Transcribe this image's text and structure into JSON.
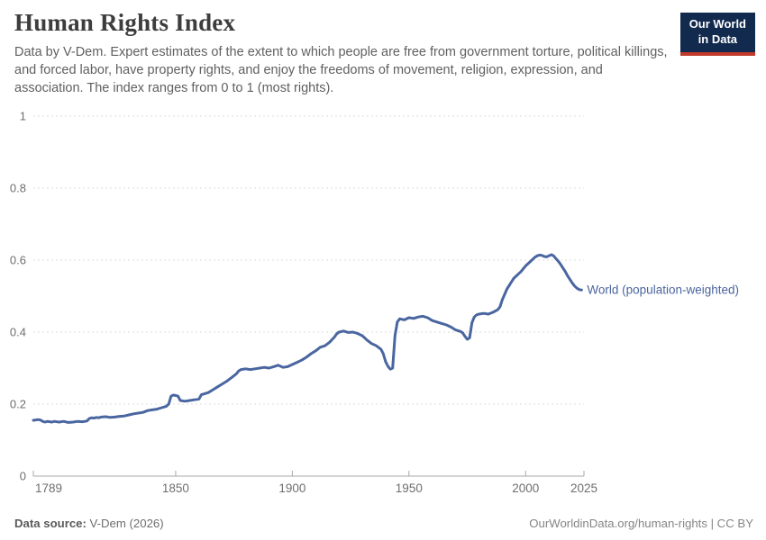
{
  "header": {
    "title": "Human Rights Index",
    "subtitle": "Data by V-Dem. Expert estimates of the extent to which people are free from government torture, political killings, and forced labor, have property rights, and enjoy the freedoms of movement, religion, expression, and association. The index ranges from 0 to 1 (most rights).",
    "logo": {
      "line1": "Our World",
      "line2": "in Data",
      "bg_color": "#122a4e",
      "bar_color": "#c0392b"
    }
  },
  "footer": {
    "source_label": "Data source:",
    "source_value": " V-Dem (2026)",
    "credit": "OurWorldinData.org/human-rights | CC BY"
  },
  "chart_data": {
    "type": "line",
    "title": "Human Rights Index",
    "series_label": "World (population-weighted)",
    "line_color": "#4a66a0",
    "axis_text_color": "#6e6e6e",
    "gridline_color": "#dcdcdc",
    "axis_line_color": "#a8a8a8",
    "xlim": [
      1789,
      2025
    ],
    "ylim": [
      0,
      1
    ],
    "x_ticks": [
      1789,
      1850,
      1900,
      1950,
      2000,
      2025
    ],
    "y_ticks": [
      0,
      0.2,
      0.4,
      0.6,
      0.8,
      1
    ],
    "y_tick_labels": [
      "0",
      "0.2",
      "0.4",
      "0.6",
      "0.8",
      "1"
    ],
    "grid": "dashed-horizontal",
    "legend_position": "end-of-line",
    "points": [
      [
        1789,
        0.155
      ],
      [
        1790,
        0.156
      ],
      [
        1791,
        0.157
      ],
      [
        1792,
        0.156
      ],
      [
        1793,
        0.152
      ],
      [
        1794,
        0.15
      ],
      [
        1795,
        0.152
      ],
      [
        1796,
        0.151
      ],
      [
        1797,
        0.15
      ],
      [
        1798,
        0.152
      ],
      [
        1800,
        0.15
      ],
      [
        1802,
        0.152
      ],
      [
        1804,
        0.149
      ],
      [
        1806,
        0.15
      ],
      [
        1808,
        0.152
      ],
      [
        1810,
        0.151
      ],
      [
        1812,
        0.153
      ],
      [
        1813,
        0.16
      ],
      [
        1814,
        0.162
      ],
      [
        1815,
        0.161
      ],
      [
        1816,
        0.163
      ],
      [
        1817,
        0.162
      ],
      [
        1818,
        0.164
      ],
      [
        1820,
        0.165
      ],
      [
        1822,
        0.163
      ],
      [
        1824,
        0.164
      ],
      [
        1826,
        0.166
      ],
      [
        1828,
        0.167
      ],
      [
        1830,
        0.17
      ],
      [
        1832,
        0.173
      ],
      [
        1834,
        0.175
      ],
      [
        1836,
        0.177
      ],
      [
        1838,
        0.182
      ],
      [
        1840,
        0.184
      ],
      [
        1842,
        0.186
      ],
      [
        1844,
        0.19
      ],
      [
        1846,
        0.194
      ],
      [
        1847,
        0.2
      ],
      [
        1848,
        0.222
      ],
      [
        1849,
        0.225
      ],
      [
        1850,
        0.224
      ],
      [
        1851,
        0.222
      ],
      [
        1852,
        0.21
      ],
      [
        1854,
        0.208
      ],
      [
        1856,
        0.21
      ],
      [
        1858,
        0.212
      ],
      [
        1860,
        0.214
      ],
      [
        1861,
        0.226
      ],
      [
        1862,
        0.228
      ],
      [
        1864,
        0.232
      ],
      [
        1866,
        0.24
      ],
      [
        1868,
        0.248
      ],
      [
        1870,
        0.256
      ],
      [
        1872,
        0.264
      ],
      [
        1874,
        0.274
      ],
      [
        1876,
        0.284
      ],
      [
        1877,
        0.292
      ],
      [
        1878,
        0.296
      ],
      [
        1880,
        0.298
      ],
      [
        1882,
        0.296
      ],
      [
        1884,
        0.298
      ],
      [
        1886,
        0.3
      ],
      [
        1888,
        0.302
      ],
      [
        1890,
        0.3
      ],
      [
        1892,
        0.304
      ],
      [
        1894,
        0.308
      ],
      [
        1896,
        0.302
      ],
      [
        1898,
        0.304
      ],
      [
        1900,
        0.31
      ],
      [
        1902,
        0.316
      ],
      [
        1904,
        0.322
      ],
      [
        1906,
        0.33
      ],
      [
        1908,
        0.34
      ],
      [
        1910,
        0.348
      ],
      [
        1912,
        0.358
      ],
      [
        1914,
        0.362
      ],
      [
        1916,
        0.372
      ],
      [
        1918,
        0.386
      ],
      [
        1919,
        0.395
      ],
      [
        1920,
        0.4
      ],
      [
        1922,
        0.403
      ],
      [
        1924,
        0.399
      ],
      [
        1926,
        0.4
      ],
      [
        1928,
        0.396
      ],
      [
        1930,
        0.39
      ],
      [
        1932,
        0.378
      ],
      [
        1934,
        0.368
      ],
      [
        1936,
        0.362
      ],
      [
        1938,
        0.352
      ],
      [
        1939,
        0.34
      ],
      [
        1940,
        0.318
      ],
      [
        1941,
        0.305
      ],
      [
        1942,
        0.297
      ],
      [
        1943,
        0.3
      ],
      [
        1944,
        0.39
      ],
      [
        1945,
        0.428
      ],
      [
        1946,
        0.437
      ],
      [
        1948,
        0.434
      ],
      [
        1950,
        0.44
      ],
      [
        1952,
        0.438
      ],
      [
        1954,
        0.442
      ],
      [
        1956,
        0.444
      ],
      [
        1958,
        0.44
      ],
      [
        1960,
        0.432
      ],
      [
        1962,
        0.428
      ],
      [
        1964,
        0.424
      ],
      [
        1966,
        0.42
      ],
      [
        1968,
        0.414
      ],
      [
        1970,
        0.406
      ],
      [
        1972,
        0.402
      ],
      [
        1973,
        0.398
      ],
      [
        1974,
        0.388
      ],
      [
        1975,
        0.38
      ],
      [
        1976,
        0.384
      ],
      [
        1977,
        0.426
      ],
      [
        1978,
        0.442
      ],
      [
        1979,
        0.448
      ],
      [
        1980,
        0.45
      ],
      [
        1982,
        0.452
      ],
      [
        1984,
        0.45
      ],
      [
        1986,
        0.455
      ],
      [
        1988,
        0.462
      ],
      [
        1989,
        0.47
      ],
      [
        1990,
        0.49
      ],
      [
        1991,
        0.505
      ],
      [
        1992,
        0.52
      ],
      [
        1993,
        0.53
      ],
      [
        1994,
        0.54
      ],
      [
        1995,
        0.55
      ],
      [
        1996,
        0.556
      ],
      [
        1997,
        0.562
      ],
      [
        1998,
        0.568
      ],
      [
        1999,
        0.576
      ],
      [
        2000,
        0.584
      ],
      [
        2001,
        0.59
      ],
      [
        2002,
        0.596
      ],
      [
        2003,
        0.602
      ],
      [
        2004,
        0.608
      ],
      [
        2005,
        0.612
      ],
      [
        2006,
        0.614
      ],
      [
        2007,
        0.613
      ],
      [
        2008,
        0.61
      ],
      [
        2009,
        0.609
      ],
      [
        2010,
        0.612
      ],
      [
        2011,
        0.615
      ],
      [
        2012,
        0.612
      ],
      [
        2013,
        0.604
      ],
      [
        2014,
        0.597
      ],
      [
        2015,
        0.588
      ],
      [
        2016,
        0.578
      ],
      [
        2017,
        0.568
      ],
      [
        2018,
        0.556
      ],
      [
        2019,
        0.546
      ],
      [
        2020,
        0.536
      ],
      [
        2021,
        0.528
      ],
      [
        2022,
        0.522
      ],
      [
        2023,
        0.518
      ],
      [
        2024,
        0.517
      ]
    ]
  }
}
